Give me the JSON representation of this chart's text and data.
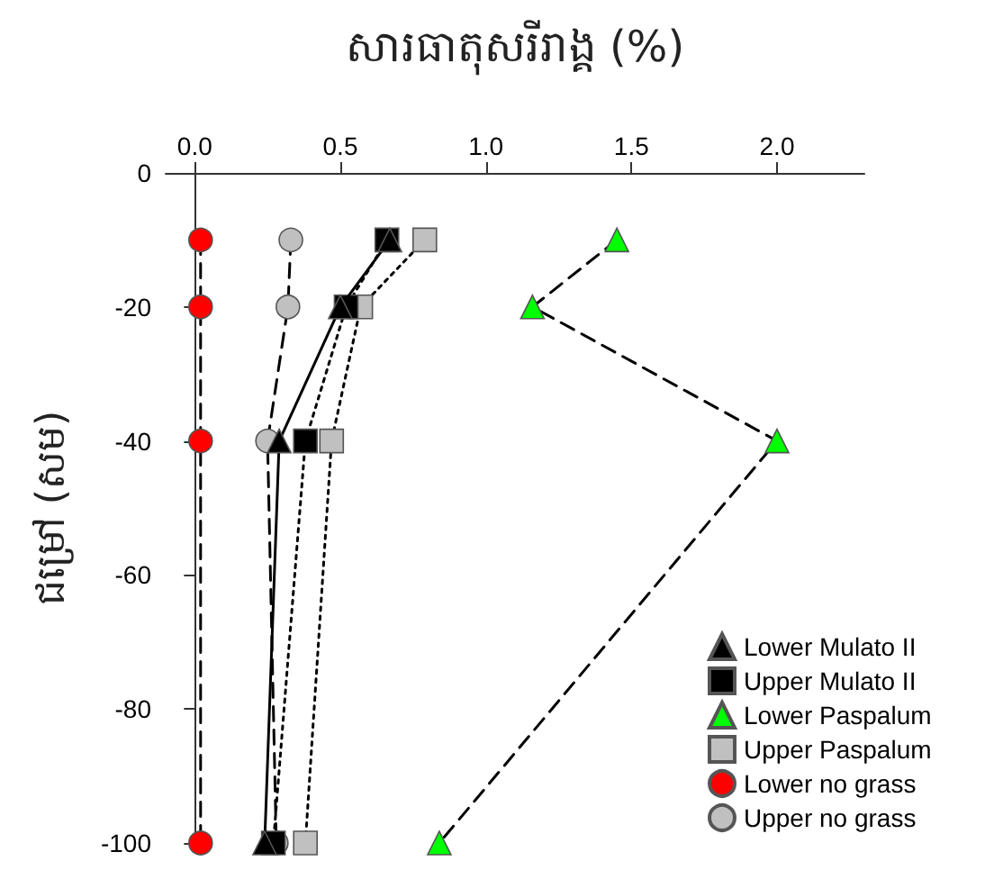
{
  "chart_data": {
    "type": "line",
    "xlabel": "សារធាតុសរីរាង្គ (%)",
    "ylabel": "ជម្រៅ (សម)",
    "xlim": [
      -0.1,
      2.3
    ],
    "xticks": [
      {
        "value": 0,
        "label": "0.0"
      },
      {
        "value": 0.5,
        "label": "0.5"
      },
      {
        "value": 1,
        "label": "1.0"
      },
      {
        "value": 1.5,
        "label": "1.5"
      },
      {
        "value": 2,
        "label": "2.0"
      }
    ],
    "ylim": [
      -100,
      0
    ],
    "yticks": [
      0,
      -20,
      -40,
      -60,
      -80,
      -100
    ],
    "grid": false,
    "legend": "bottom right",
    "series": [
      {
        "name": "Lower Mulato II",
        "color": "#000000",
        "marker": "triangle",
        "line_style": "solid",
        "x": [
          0.67,
          0.5,
          0.29,
          0.24
        ],
        "values": [
          -10,
          -20,
          -40,
          -100
        ]
      },
      {
        "name": "Upper Mulato II",
        "color": "#000000",
        "marker": "square",
        "line_style": "dotted",
        "x": [
          0.66,
          0.52,
          0.38,
          0.27
        ],
        "values": [
          -10,
          -20,
          -40,
          -100
        ]
      },
      {
        "name": "Lower Paspalum",
        "color": "#00ff00",
        "marker": "triangle",
        "line_style": "dashed",
        "x": [
          1.45,
          1.16,
          2.0,
          0.84
        ],
        "values": [
          -10,
          -20,
          -40,
          -100
        ]
      },
      {
        "name": "Upper Paspalum",
        "color": "#c0c0c0",
        "marker": "square",
        "line_style": "dotted",
        "x": [
          0.79,
          0.57,
          0.47,
          0.38
        ],
        "values": [
          -10,
          -20,
          -40,
          -100
        ]
      },
      {
        "name": "Lower no grass",
        "color": "#ff0000",
        "marker": "circle",
        "line_style": "dashed",
        "x": [
          0.02,
          0.02,
          0.02,
          0.02
        ],
        "values": [
          -10,
          -20,
          -40,
          -100
        ]
      },
      {
        "name": "Upper no grass",
        "color": "#c0c0c0",
        "marker": "circle",
        "line_style": "dashed",
        "x": [
          0.33,
          0.32,
          0.25,
          0.28
        ],
        "values": [
          -10,
          -20,
          -40,
          -100
        ]
      }
    ]
  }
}
